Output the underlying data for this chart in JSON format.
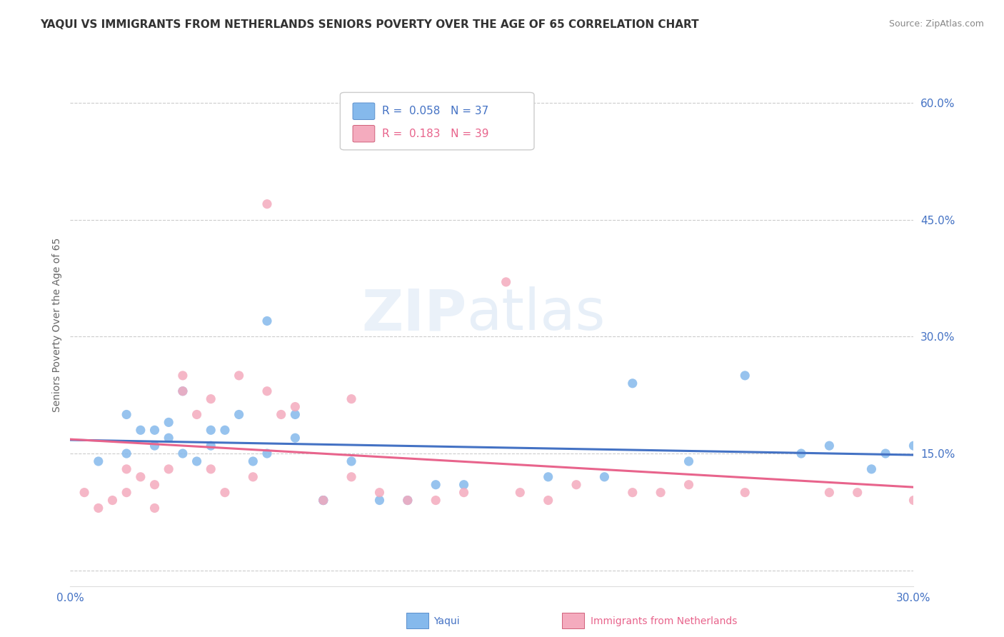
{
  "title": "YAQUI VS IMMIGRANTS FROM NETHERLANDS SENIORS POVERTY OVER THE AGE OF 65 CORRELATION CHART",
  "source_text": "Source: ZipAtlas.com",
  "ylabel": "Seniors Poverty Over the Age of 65",
  "xlim": [
    0.0,
    0.3
  ],
  "ylim": [
    -0.02,
    0.65
  ],
  "right_yticks": [
    0.0,
    0.15,
    0.3,
    0.45,
    0.6
  ],
  "right_yticklabels": [
    "",
    "15.0%",
    "30.0%",
    "45.0%",
    "60.0%"
  ],
  "grid_color": "#cccccc",
  "background_color": "#ffffff",
  "yaqui_x": [
    0.01,
    0.02,
    0.02,
    0.025,
    0.03,
    0.03,
    0.035,
    0.035,
    0.04,
    0.04,
    0.045,
    0.05,
    0.05,
    0.055,
    0.06,
    0.065,
    0.07,
    0.07,
    0.08,
    0.08,
    0.09,
    0.09,
    0.1,
    0.11,
    0.12,
    0.13,
    0.14,
    0.17,
    0.19,
    0.2,
    0.22,
    0.24,
    0.26,
    0.27,
    0.285,
    0.29,
    0.3
  ],
  "yaqui_y": [
    0.14,
    0.2,
    0.15,
    0.18,
    0.16,
    0.18,
    0.19,
    0.17,
    0.23,
    0.15,
    0.14,
    0.16,
    0.18,
    0.18,
    0.2,
    0.14,
    0.15,
    0.32,
    0.2,
    0.17,
    0.09,
    0.09,
    0.14,
    0.09,
    0.09,
    0.11,
    0.11,
    0.12,
    0.12,
    0.24,
    0.14,
    0.25,
    0.15,
    0.16,
    0.13,
    0.15,
    0.16
  ],
  "neth_x": [
    0.005,
    0.01,
    0.015,
    0.02,
    0.02,
    0.025,
    0.03,
    0.03,
    0.035,
    0.04,
    0.04,
    0.045,
    0.05,
    0.05,
    0.055,
    0.06,
    0.065,
    0.07,
    0.07,
    0.075,
    0.08,
    0.09,
    0.1,
    0.1,
    0.11,
    0.12,
    0.13,
    0.14,
    0.155,
    0.16,
    0.17,
    0.18,
    0.2,
    0.21,
    0.22,
    0.24,
    0.27,
    0.28,
    0.3
  ],
  "neth_y": [
    0.1,
    0.08,
    0.09,
    0.1,
    0.13,
    0.12,
    0.11,
    0.08,
    0.13,
    0.23,
    0.25,
    0.2,
    0.22,
    0.13,
    0.1,
    0.25,
    0.12,
    0.47,
    0.23,
    0.2,
    0.21,
    0.09,
    0.12,
    0.22,
    0.1,
    0.09,
    0.09,
    0.1,
    0.37,
    0.1,
    0.09,
    0.11,
    0.1,
    0.1,
    0.11,
    0.1,
    0.1,
    0.1,
    0.09
  ],
  "yaqui_color": "#85B9EC",
  "yaqui_trend_color": "#4472C4",
  "neth_color": "#F4ABBE",
  "neth_trend_color": "#E8648C",
  "yaqui_R": "0.058",
  "yaqui_N": "37",
  "neth_R": "0.183",
  "neth_N": "39",
  "title_fontsize": 11,
  "tick_fontsize": 11,
  "ylabel_fontsize": 10,
  "source_fontsize": 9,
  "legend_fontsize": 11
}
